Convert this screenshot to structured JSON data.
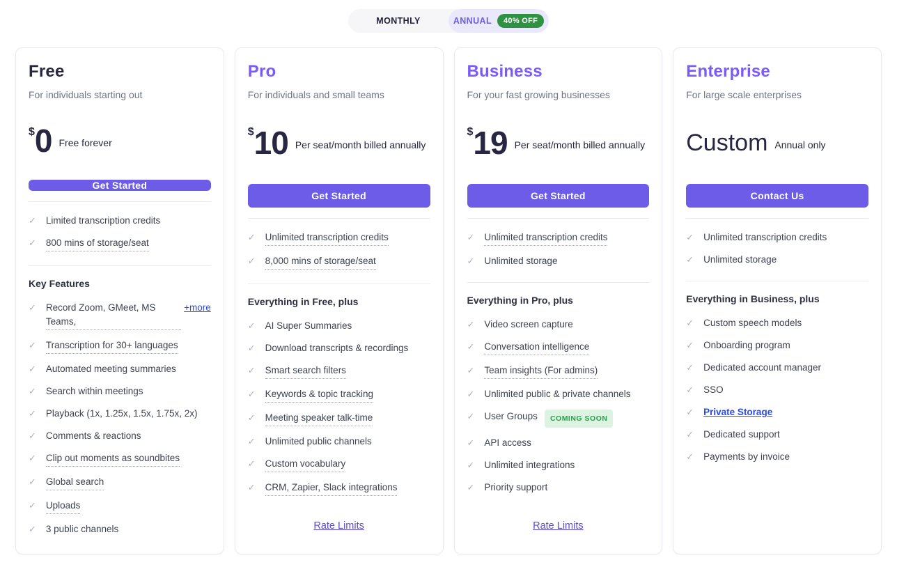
{
  "billing_toggle": {
    "monthly_label": "MONTHLY",
    "annual_label": "ANNUAL",
    "discount_badge": "40% OFF",
    "selected": "ANNUAL"
  },
  "colors": {
    "accent_purple": "#6C5CE7",
    "title_purple": "#7A5AF8",
    "discount_badge_green": "#2F9243",
    "coming_soon_bg": "#DCF3E2",
    "coming_soon_text": "#27A04B",
    "link_blue": "#2948EF",
    "rate_limits_link": "#5A4BD8"
  },
  "plans": [
    {
      "name": "Free",
      "accent": false,
      "description": "For individuals starting out",
      "price": {
        "currency": "$",
        "amount": "0",
        "custom": false,
        "note": "Free forever"
      },
      "cta": "Get Started",
      "top_features": [
        {
          "text": "Limited transcription credits",
          "underline": false
        },
        {
          "text": "800 mins of storage/seat",
          "underline": true
        }
      ],
      "section_heading": "Key Features",
      "features": [
        {
          "text": "Record Zoom, GMeet, MS Teams,",
          "underline": true,
          "link": "+more"
        },
        {
          "text": "Transcription for 30+ languages",
          "underline": true
        },
        {
          "text": "Automated meeting summaries",
          "underline": false
        },
        {
          "text": "Search within meetings",
          "underline": false
        },
        {
          "text": "Playback (1x, 1.25x, 1.5x, 1.75x, 2x)",
          "underline": false
        },
        {
          "text": "Comments & reactions",
          "underline": false
        },
        {
          "text": "Clip out moments as soundbites",
          "underline": true
        },
        {
          "text": "Global search",
          "underline": true
        },
        {
          "text": "Uploads",
          "underline": true
        },
        {
          "text": "3 public channels",
          "underline": false
        }
      ],
      "footer_link": ""
    },
    {
      "name": "Pro",
      "accent": true,
      "description": "For individuals and small teams",
      "price": {
        "currency": "$",
        "amount": "10",
        "custom": false,
        "note": "Per seat/month billed annually"
      },
      "cta": "Get Started",
      "top_features": [
        {
          "text": "Unlimited transcription credits",
          "underline": true
        },
        {
          "text": "8,000 mins of storage/seat",
          "underline": true
        }
      ],
      "section_heading": "Everything in Free, plus",
      "features": [
        {
          "text": "AI Super Summaries",
          "underline": false
        },
        {
          "text": "Download transcripts & recordings",
          "underline": false
        },
        {
          "text": "Smart search filters",
          "underline": true
        },
        {
          "text": "Keywords & topic tracking",
          "underline": true
        },
        {
          "text": "Meeting speaker talk-time",
          "underline": true
        },
        {
          "text": "Unlimited public channels",
          "underline": false
        },
        {
          "text": "Custom vocabulary",
          "underline": true
        },
        {
          "text": "CRM, Zapier, Slack integrations",
          "underline": true
        }
      ],
      "footer_link": "Rate Limits"
    },
    {
      "name": "Business",
      "accent": true,
      "description": "For your fast growing businesses",
      "price": {
        "currency": "$",
        "amount": "19",
        "custom": false,
        "note": "Per seat/month billed annually"
      },
      "cta": "Get Started",
      "top_features": [
        {
          "text": "Unlimited transcription credits",
          "underline": true
        },
        {
          "text": "Unlimited storage",
          "underline": false
        }
      ],
      "section_heading": "Everything in Pro, plus",
      "features": [
        {
          "text": "Video screen capture",
          "underline": false
        },
        {
          "text": "Conversation intelligence",
          "underline": true
        },
        {
          "text": "Team insights (For admins)",
          "underline": true
        },
        {
          "text": "Unlimited public & private channels",
          "underline": false
        },
        {
          "text": "User Groups",
          "underline": false,
          "badge": "COMING SOON"
        },
        {
          "text": "API access",
          "underline": false
        },
        {
          "text": "Unlimited integrations",
          "underline": false
        },
        {
          "text": "Priority support",
          "underline": false
        }
      ],
      "footer_link": "Rate Limits"
    },
    {
      "name": "Enterprise",
      "accent": true,
      "description": "For large scale enterprises",
      "price": {
        "currency": "",
        "amount": "Custom",
        "custom": true,
        "note": "Annual only"
      },
      "cta": "Contact Us",
      "top_features": [
        {
          "text": "Unlimited transcription credits",
          "underline": false
        },
        {
          "text": "Unlimited storage",
          "underline": false
        }
      ],
      "section_heading": "Everything in Business, plus",
      "features": [
        {
          "text": "Custom speech models",
          "underline": false
        },
        {
          "text": "Onboarding program",
          "underline": false
        },
        {
          "text": "Dedicated account manager",
          "underline": false
        },
        {
          "text": "SSO",
          "underline": false
        },
        {
          "text": "Private Storage",
          "underline": false,
          "is_link": true
        },
        {
          "text": "Dedicated support",
          "underline": false
        },
        {
          "text": "Payments by invoice",
          "underline": false
        }
      ],
      "footer_link": ""
    }
  ]
}
